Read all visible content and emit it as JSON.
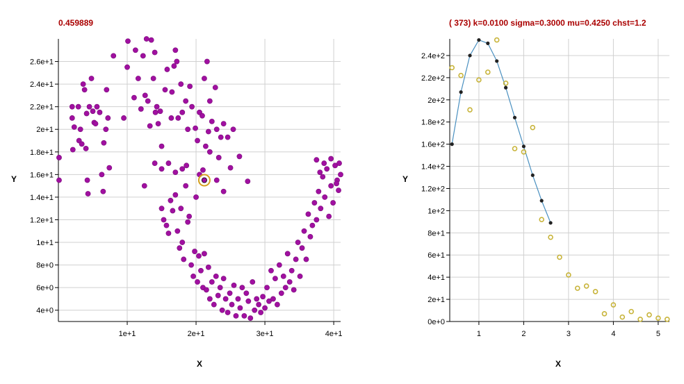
{
  "chart_data": [
    {
      "type": "scatter",
      "title": "0.459889",
      "xlabel": "X",
      "ylabel": "Y",
      "xlim": [
        0,
        41
      ],
      "ylim": [
        3,
        28
      ],
      "xticks": [
        10,
        20,
        30,
        40
      ],
      "xtick_labels": [
        "1e+1",
        "2e+1",
        "3e+1",
        "4e+1"
      ],
      "yticks": [
        4,
        6,
        8,
        10,
        12,
        14,
        16,
        18,
        20,
        22,
        24,
        26
      ],
      "ytick_labels": [
        "4e+0",
        "6e+0",
        "8e+0",
        "1e+1",
        "1.2e+1",
        "1.4e+1",
        "1.6e+1",
        "1.8e+1",
        "2e+1",
        "2.2e+1",
        "2.4e+1",
        "2.6e+1"
      ],
      "grid": true,
      "colors": {
        "points": "#a010a0",
        "highlight": "#d4a020"
      },
      "highlight": {
        "x": 21.2,
        "y": 15.5
      },
      "series": [
        {
          "values": [
            [
              0.1,
              17.5
            ],
            [
              0.1,
              15.5
            ],
            [
              2,
              22
            ],
            [
              2,
              21
            ],
            [
              2.3,
              20.2
            ],
            [
              2.1,
              18.2
            ],
            [
              2.9,
              22
            ],
            [
              3,
              19
            ],
            [
              3.2,
              20
            ],
            [
              3.4,
              18.7
            ],
            [
              3.6,
              24
            ],
            [
              3.8,
              23.5
            ],
            [
              4,
              18.3
            ],
            [
              4.1,
              21.4
            ],
            [
              4.2,
              15.5
            ],
            [
              4.3,
              14.3
            ],
            [
              4.5,
              22
            ],
            [
              4.8,
              24.5
            ],
            [
              5,
              21.6
            ],
            [
              5.2,
              20.6
            ],
            [
              5.4,
              20.5
            ],
            [
              5.6,
              22
            ],
            [
              6,
              21.5
            ],
            [
              6.3,
              16
            ],
            [
              6.5,
              14.5
            ],
            [
              6.6,
              18.8
            ],
            [
              6.9,
              20
            ],
            [
              7,
              23.5
            ],
            [
              7.2,
              21
            ],
            [
              7.4,
              16.6
            ],
            [
              8,
              26.5
            ],
            [
              9.5,
              21
            ],
            [
              10,
              25.5
            ],
            [
              10.1,
              27.8
            ],
            [
              11,
              22.8
            ],
            [
              11.2,
              27
            ],
            [
              11.6,
              24.5
            ],
            [
              12,
              21.8
            ],
            [
              12.3,
              26.5
            ],
            [
              12.6,
              23
            ],
            [
              12.8,
              28
            ],
            [
              13,
              22.5
            ],
            [
              13.3,
              20.3
            ],
            [
              13.5,
              27.9
            ],
            [
              13.8,
              24.5
            ],
            [
              14,
              26.8
            ],
            [
              14.1,
              21.5
            ],
            [
              14.3,
              22
            ],
            [
              14.5,
              20.5
            ],
            [
              14.8,
              21.6
            ],
            [
              15,
              18.5
            ],
            [
              15.5,
              23.5
            ],
            [
              15.8,
              25.3
            ],
            [
              16.4,
              21
            ],
            [
              16.5,
              23.3
            ],
            [
              16.8,
              25.6
            ],
            [
              17,
              27
            ],
            [
              17.2,
              26
            ],
            [
              17.4,
              21
            ],
            [
              17.8,
              24
            ],
            [
              18,
              21.5
            ],
            [
              18.5,
              22.5
            ],
            [
              18.8,
              20
            ],
            [
              19.1,
              23.8
            ],
            [
              19.4,
              22
            ],
            [
              19.9,
              20.1
            ],
            [
              20.2,
              19
            ],
            [
              20.5,
              21.5
            ],
            [
              20.9,
              21.2
            ],
            [
              21.2,
              24.5
            ],
            [
              21.4,
              18.5
            ],
            [
              21.6,
              26
            ],
            [
              21.8,
              19.8
            ],
            [
              22,
              22.5
            ],
            [
              22.3,
              20.7
            ],
            [
              22.8,
              23.7
            ],
            [
              23,
              20
            ],
            [
              23.3,
              17.5
            ],
            [
              23.6,
              19.3
            ],
            [
              24,
              20.5
            ],
            [
              24.6,
              19.3
            ],
            [
              25,
              16.6
            ],
            [
              25.4,
              20
            ],
            [
              26.3,
              17.6
            ],
            [
              27.5,
              15.4
            ],
            [
              12.5,
              15
            ],
            [
              14,
              17
            ],
            [
              15,
              16.5
            ],
            [
              16,
              17
            ],
            [
              17,
              16.2
            ],
            [
              18,
              16.5
            ],
            [
              18.6,
              16.8
            ],
            [
              20.5,
              16
            ],
            [
              21,
              16.4
            ],
            [
              22,
              18
            ],
            [
              23,
              15.5
            ],
            [
              24,
              14.5
            ],
            [
              15,
              13
            ],
            [
              15.3,
              12
            ],
            [
              15.7,
              11.5
            ],
            [
              16,
              10.8
            ],
            [
              16.3,
              13.7
            ],
            [
              16.6,
              12.8
            ],
            [
              17,
              14.2
            ],
            [
              17.3,
              11
            ],
            [
              17.6,
              9.5
            ],
            [
              17.8,
              13
            ],
            [
              18,
              10
            ],
            [
              18.2,
              8.5
            ],
            [
              18.5,
              15
            ],
            [
              18.8,
              11.8
            ],
            [
              19,
              12.3
            ],
            [
              19.3,
              8
            ],
            [
              19.6,
              7
            ],
            [
              19.8,
              9.2
            ],
            [
              20,
              14
            ],
            [
              20.2,
              6.5
            ],
            [
              20.4,
              8.8
            ],
            [
              20.7,
              7.5
            ],
            [
              21,
              6
            ],
            [
              21.2,
              9
            ],
            [
              21.5,
              5.8
            ],
            [
              21.8,
              7.8
            ],
            [
              22,
              5
            ],
            [
              22.3,
              6.5
            ],
            [
              22.6,
              4.5
            ],
            [
              22.9,
              7
            ],
            [
              23.2,
              5.3
            ],
            [
              23.5,
              6
            ],
            [
              23.8,
              4
            ],
            [
              24,
              6.8
            ],
            [
              24.3,
              5
            ],
            [
              24.6,
              3.8
            ],
            [
              24.9,
              5.5
            ],
            [
              25.2,
              4.5
            ],
            [
              25.5,
              6.2
            ],
            [
              25.8,
              3.5
            ],
            [
              26.1,
              5
            ],
            [
              26.4,
              4.2
            ],
            [
              26.7,
              6
            ],
            [
              27,
              3.5
            ],
            [
              27.3,
              5.5
            ],
            [
              27.6,
              4.8
            ],
            [
              27.9,
              3.3
            ],
            [
              28.2,
              6.5
            ],
            [
              28.5,
              4
            ],
            [
              28.8,
              5
            ],
            [
              29.1,
              4.5
            ],
            [
              29.4,
              3.8
            ],
            [
              29.7,
              5.2
            ],
            [
              30,
              4.2
            ],
            [
              30.3,
              6
            ],
            [
              30.6,
              4.8
            ],
            [
              30.9,
              7.5
            ],
            [
              31.2,
              5
            ],
            [
              31.5,
              6.8
            ],
            [
              31.8,
              4.5
            ],
            [
              32.1,
              8
            ],
            [
              32.4,
              5.5
            ],
            [
              32.7,
              7
            ],
            [
              33,
              6
            ],
            [
              33.3,
              9
            ],
            [
              33.6,
              6.5
            ],
            [
              33.9,
              7.5
            ],
            [
              34.2,
              5.8
            ],
            [
              34.5,
              8.5
            ],
            [
              34.8,
              10
            ],
            [
              35.1,
              7
            ],
            [
              35.4,
              9.5
            ],
            [
              35.7,
              11
            ],
            [
              36,
              8.5
            ],
            [
              36.3,
              12.5
            ],
            [
              36.6,
              10.5
            ],
            [
              36.9,
              11.5
            ],
            [
              37.2,
              13.5
            ],
            [
              37.5,
              12
            ],
            [
              37.8,
              14.5
            ],
            [
              38.1,
              13
            ],
            [
              38.4,
              15.8
            ],
            [
              38.7,
              14
            ],
            [
              39,
              16.5
            ],
            [
              39.3,
              12.3
            ],
            [
              39.6,
              15
            ],
            [
              39.9,
              13.5
            ],
            [
              40.2,
              16.8
            ],
            [
              40.5,
              15.5
            ],
            [
              40.8,
              17
            ],
            [
              41,
              16
            ],
            [
              37.5,
              17.3
            ],
            [
              38,
              16.2
            ],
            [
              38.6,
              17
            ],
            [
              39.6,
              17.4
            ],
            [
              40.4,
              15.2
            ],
            [
              40.7,
              14.6
            ]
          ]
        }
      ]
    },
    {
      "type": "line",
      "title": "( 373) k=0.0100 sigma=0.3000 mu=0.4250 chst=1.2",
      "xlabel": "X",
      "ylabel": "Y",
      "xlim": [
        0.35,
        5.25
      ],
      "ylim": [
        0,
        255
      ],
      "xticks": [
        1,
        2,
        3,
        4,
        5
      ],
      "xtick_labels": [
        "1",
        "2",
        "3",
        "4",
        "5"
      ],
      "yticks": [
        0,
        20,
        40,
        60,
        80,
        100,
        120,
        140,
        160,
        180,
        200,
        220,
        240
      ],
      "ytick_labels": [
        "0e+0",
        "2e+1",
        "4e+1",
        "6e+1",
        "8e+1",
        "1e+2",
        "1.2e+2",
        "1.4e+2",
        "1.6e+2",
        "1.8e+2",
        "2e+2",
        "2.2e+2",
        "2.4e+2"
      ],
      "grid": true,
      "colors": {
        "fit": "#4a90c0",
        "fit_points": "#222222",
        "observed": "#c8b43a"
      },
      "series": [
        {
          "x": [
            0.4,
            0.6,
            0.8,
            1.0,
            1.2,
            1.4,
            1.6,
            1.8,
            2.0,
            2.2,
            2.4,
            2.6
          ],
          "values": [
            160,
            207,
            240,
            254,
            251,
            235,
            211,
            184,
            158,
            132,
            109,
            89
          ]
        },
        {
          "x": [
            0.4,
            0.6,
            0.8,
            1.0,
            1.2,
            1.4,
            1.6,
            1.8,
            2.0,
            2.2,
            2.4,
            2.6,
            2.8,
            3.0,
            3.2,
            3.4,
            3.6,
            3.8,
            4.0,
            4.2,
            4.4,
            4.6,
            4.8,
            5.0,
            5.2
          ],
          "values": [
            229,
            222,
            191,
            218,
            225,
            254,
            215,
            156,
            153,
            175,
            92,
            76,
            58,
            42,
            30,
            32,
            27,
            7,
            15,
            4,
            9,
            2,
            6,
            3,
            2
          ]
        }
      ]
    }
  ]
}
